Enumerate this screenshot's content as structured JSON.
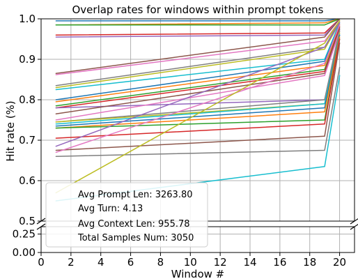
{
  "chart_data": {
    "type": "line",
    "title": "Overlap rates for windows within prompt tokens",
    "xlabel": "Window #",
    "ylabel": "Hit rate (%)",
    "x": [
      1,
      19,
      20
    ],
    "xlim": [
      0,
      21
    ],
    "xticks": [
      0,
      2,
      4,
      6,
      8,
      10,
      12,
      14,
      16,
      18,
      20
    ],
    "broken_axis": {
      "upper": {
        "ylim": [
          0.5,
          1.0
        ],
        "yticks": [
          "0.5",
          "0.6",
          "0.7",
          "0.8",
          "0.9",
          "1.0"
        ]
      },
      "lower": {
        "ylim": [
          0.0,
          0.35
        ],
        "yticks": [
          "0.00",
          "0.25"
        ]
      }
    },
    "grid": true,
    "legend_placement": "lower-left",
    "annotations": [
      "Avg Prompt Len: 3263.80",
      "Avg Turn: 4.13",
      "Avg Context Len: 955.78",
      "Total Samples Num: 3050"
    ],
    "colors": [
      "#1f77b4",
      "#ff7f0e",
      "#2ca02c",
      "#d62728",
      "#9467bd",
      "#8c564b",
      "#e377c2",
      "#7f7f7f",
      "#bcbd22",
      "#17becf"
    ],
    "series": [
      {
        "values": [
          0.995,
          0.995,
          1.0
        ]
      },
      {
        "values": [
          0.985,
          0.99,
          1.0
        ]
      },
      {
        "values": [
          0.985,
          0.985,
          1.0
        ]
      },
      {
        "values": [
          0.96,
          0.965,
          1.0
        ]
      },
      {
        "values": [
          0.955,
          0.96,
          1.0
        ]
      },
      {
        "values": [
          0.865,
          0.955,
          1.0
        ]
      },
      {
        "values": [
          0.862,
          0.945,
          0.995
        ]
      },
      {
        "values": [
          0.835,
          0.93,
          0.995
        ]
      },
      {
        "values": [
          0.83,
          0.925,
          0.99
        ]
      },
      {
        "values": [
          0.825,
          0.9,
          0.99
        ]
      },
      {
        "values": [
          0.8,
          0.895,
          0.985
        ]
      },
      {
        "values": [
          0.795,
          0.885,
          0.985
        ]
      },
      {
        "values": [
          0.785,
          0.875,
          0.98
        ]
      },
      {
        "values": [
          0.78,
          0.87,
          0.98
        ]
      },
      {
        "values": [
          0.78,
          0.8,
          0.975
        ]
      },
      {
        "values": [
          0.765,
          0.865,
          0.975
        ]
      },
      {
        "values": [
          0.75,
          0.86,
          0.97
        ]
      },
      {
        "values": [
          0.745,
          0.8,
          0.97
        ]
      },
      {
        "values": [
          0.745,
          0.79,
          0.965
        ]
      },
      {
        "values": [
          0.74,
          0.79,
          0.96
        ]
      },
      {
        "values": [
          0.735,
          0.78,
          0.96
        ]
      },
      {
        "values": [
          0.73,
          0.77,
          0.955
        ]
      },
      {
        "values": [
          0.73,
          0.75,
          0.95
        ]
      },
      {
        "values": [
          0.705,
          0.74,
          0.95
        ]
      },
      {
        "values": [
          0.685,
          0.93,
          0.99
        ]
      },
      {
        "values": [
          0.675,
          0.71,
          0.94
        ]
      },
      {
        "values": [
          0.67,
          0.89,
          0.985
        ]
      },
      {
        "values": [
          0.66,
          0.675,
          0.88
        ]
      },
      {
        "values": [
          0.57,
          0.94,
          0.995
        ]
      },
      {
        "values": [
          0.55,
          0.635,
          0.86
        ]
      }
    ]
  }
}
